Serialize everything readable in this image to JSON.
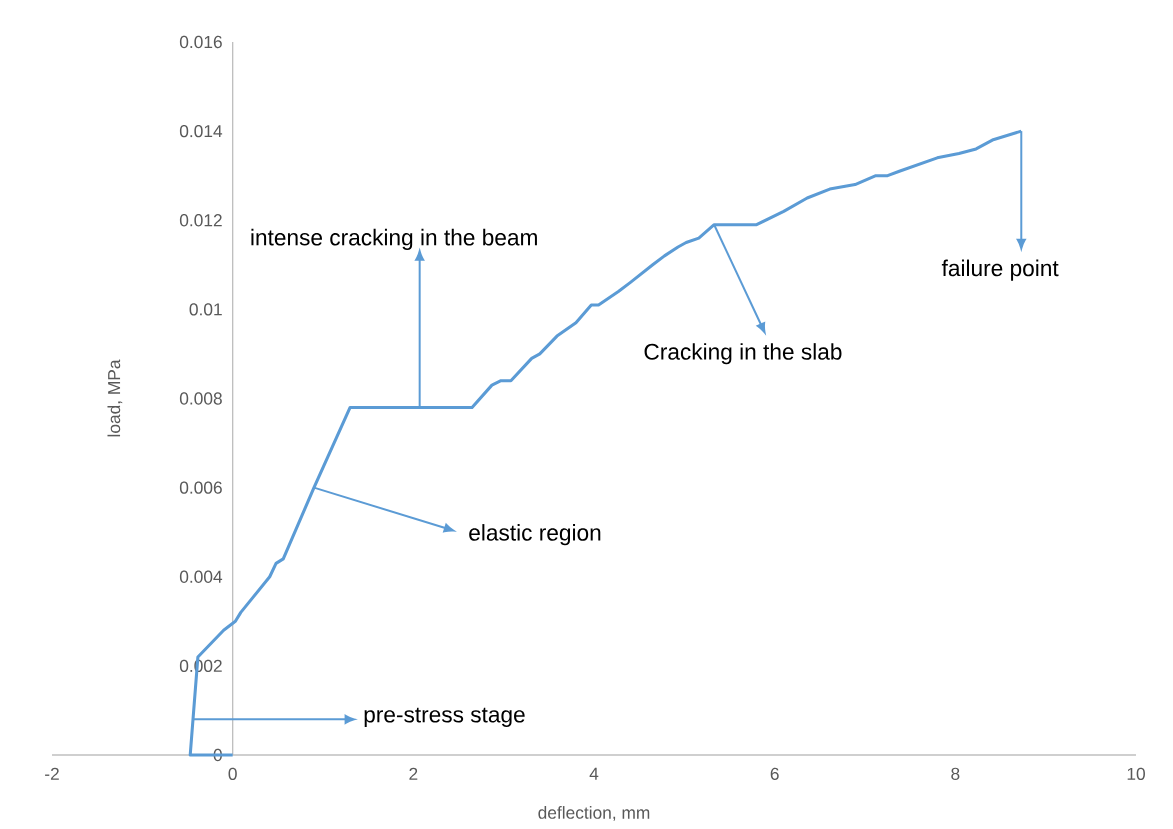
{
  "chart_data": {
    "type": "line",
    "xlabel": "deflection, mm",
    "ylabel": "load, MPa",
    "x": [
      0,
      -0.47,
      -0.385,
      -0.1,
      0.03,
      0.09,
      0.41,
      0.48,
      0.56,
      0.9,
      1.3,
      2.65,
      2.87,
      2.97,
      3.08,
      3.31,
      3.4,
      3.59,
      3.8,
      3.97,
      4.05,
      4.27,
      4.4,
      4.65,
      4.78,
      4.93,
      5.02,
      5.16,
      5.33,
      5.8,
      6.1,
      6.36,
      6.61,
      6.89,
      7.12,
      7.25,
      7.38,
      7.8,
      8.04,
      8.23,
      8.41,
      8.73
    ],
    "series": [
      {
        "color": "#5b9bd5",
        "values": [
          0,
          0,
          0.0022,
          0.0028,
          0.003,
          0.0032,
          0.004,
          0.0043,
          0.0044,
          0.006,
          0.0078,
          0.0078,
          0.0083,
          0.0084,
          0.0084,
          0.0089,
          0.009,
          0.0094,
          0.0097,
          0.0101,
          0.0101,
          0.0104,
          0.0106,
          0.011,
          0.0112,
          0.0114,
          0.0115,
          0.0116,
          0.0119,
          0.0119,
          0.0122,
          0.0125,
          0.0127,
          0.0128,
          0.013,
          0.013,
          0.0131,
          0.0134,
          0.0135,
          0.0136,
          0.0138,
          0.014
        ]
      }
    ],
    "xlim": [
      -2,
      10
    ],
    "ylim": [
      0,
      0.016
    ],
    "xticks": [
      -2,
      0,
      2,
      4,
      6,
      8,
      10
    ],
    "yticks": [
      0,
      0.002,
      0.004,
      0.006,
      0.008,
      0.01,
      0.012,
      0.014,
      0.016
    ],
    "grid": false,
    "marker": "none",
    "line_style": "solid",
    "annotations": [
      {
        "text": "pre-stress stage",
        "x": -0.44,
        "y": 0.0008
      },
      {
        "text": "elastic region",
        "x": 0.9,
        "y": 0.006
      },
      {
        "text": "intense cracking in the beam",
        "x": 2.07,
        "y": 0.0078
      },
      {
        "text": "Cracking in the slab",
        "x": 5.33,
        "y": 0.0119
      },
      {
        "text": "failure point",
        "x": 8.73,
        "y": 0.014
      }
    ]
  }
}
